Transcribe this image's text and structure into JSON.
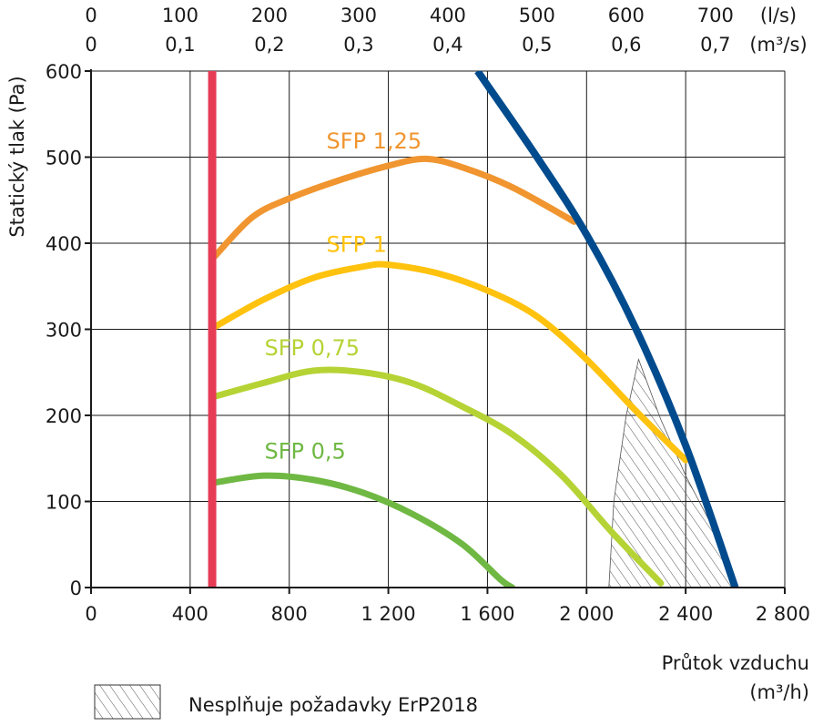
{
  "chart_data": {
    "type": "line",
    "ylabel": "Statický tlak (Pa)",
    "xlabel_line1": "Průtok vzduchu",
    "xlabel_line2": "(m³/h)",
    "xlim": [
      0,
      2800
    ],
    "ylim": [
      0,
      600
    ],
    "x_ticks": [
      0,
      400,
      800,
      1200,
      1600,
      2000,
      2400,
      2800
    ],
    "x_tick_labels": [
      "0",
      "400",
      "800",
      "1 200",
      "1 600",
      "2 000",
      "2 400",
      "2 800"
    ],
    "y_ticks": [
      0,
      100,
      200,
      300,
      400,
      500,
      600
    ],
    "y_tick_labels": [
      "0",
      "100",
      "200",
      "300",
      "400",
      "500",
      "600"
    ],
    "top_axis_ls": {
      "unit": "(l/s)",
      "ticks": [
        0,
        100,
        200,
        300,
        400,
        500,
        600,
        700
      ],
      "labels": [
        "0",
        "100",
        "200",
        "300",
        "400",
        "500",
        "600",
        "700"
      ]
    },
    "top_axis_m3s": {
      "unit": "(m³/s)",
      "ticks": [
        0,
        0.1,
        0.2,
        0.3,
        0.4,
        0.5,
        0.6,
        0.7
      ],
      "labels": [
        "0",
        "0,1",
        "0,2",
        "0,3",
        "0,4",
        "0,5",
        "0,6",
        "0,7"
      ]
    },
    "grid": true,
    "series": [
      {
        "name": "SFP 1,25",
        "color": "#f0952f",
        "label_at": [
          950,
          510
        ],
        "points": [
          [
            500,
            385
          ],
          [
            650,
            430
          ],
          [
            800,
            452
          ],
          [
            1000,
            473
          ],
          [
            1200,
            490
          ],
          [
            1350,
            498
          ],
          [
            1500,
            488
          ],
          [
            1700,
            465
          ],
          [
            1950,
            425
          ]
        ]
      },
      {
        "name": "SFP 1",
        "color": "#ffc20e",
        "label_at": [
          950,
          390
        ],
        "points": [
          [
            500,
            303
          ],
          [
            700,
            335
          ],
          [
            900,
            360
          ],
          [
            1100,
            373
          ],
          [
            1200,
            375
          ],
          [
            1400,
            365
          ],
          [
            1600,
            345
          ],
          [
            1800,
            315
          ],
          [
            2000,
            265
          ],
          [
            2200,
            205
          ],
          [
            2400,
            148
          ]
        ]
      },
      {
        "name": "SFP 0,75",
        "color": "#b5d334",
        "label_at": [
          700,
          270
        ],
        "points": [
          [
            500,
            222
          ],
          [
            700,
            238
          ],
          [
            900,
            252
          ],
          [
            1100,
            250
          ],
          [
            1300,
            237
          ],
          [
            1500,
            210
          ],
          [
            1700,
            178
          ],
          [
            1900,
            130
          ],
          [
            2100,
            65
          ],
          [
            2300,
            5
          ]
        ]
      },
      {
        "name": "SFP 0,5",
        "color": "#6fb843",
        "label_at": [
          700,
          150
        ],
        "points": [
          [
            500,
            122
          ],
          [
            700,
            130
          ],
          [
            900,
            125
          ],
          [
            1100,
            110
          ],
          [
            1300,
            85
          ],
          [
            1500,
            50
          ],
          [
            1650,
            10
          ],
          [
            1700,
            0
          ]
        ]
      }
    ],
    "system_curve": {
      "color": "#004b8d",
      "points": [
        [
          1560,
          600
        ],
        [
          1800,
          500
        ],
        [
          2000,
          410
        ],
        [
          2200,
          300
        ],
        [
          2400,
          165
        ],
        [
          2600,
          0
        ]
      ]
    },
    "limit_line": {
      "color": "#e63c55",
      "x": 500
    },
    "hatched_region": {
      "points": [
        [
          2090,
          0
        ],
        [
          2110,
          100
        ],
        [
          2160,
          200
        ],
        [
          2210,
          265
        ],
        [
          2300,
          195
        ],
        [
          2400,
          130
        ],
        [
          2500,
          75
        ],
        [
          2600,
          0
        ]
      ]
    },
    "legend": {
      "label": "Nesplňuje požadavky ErP2018"
    }
  }
}
